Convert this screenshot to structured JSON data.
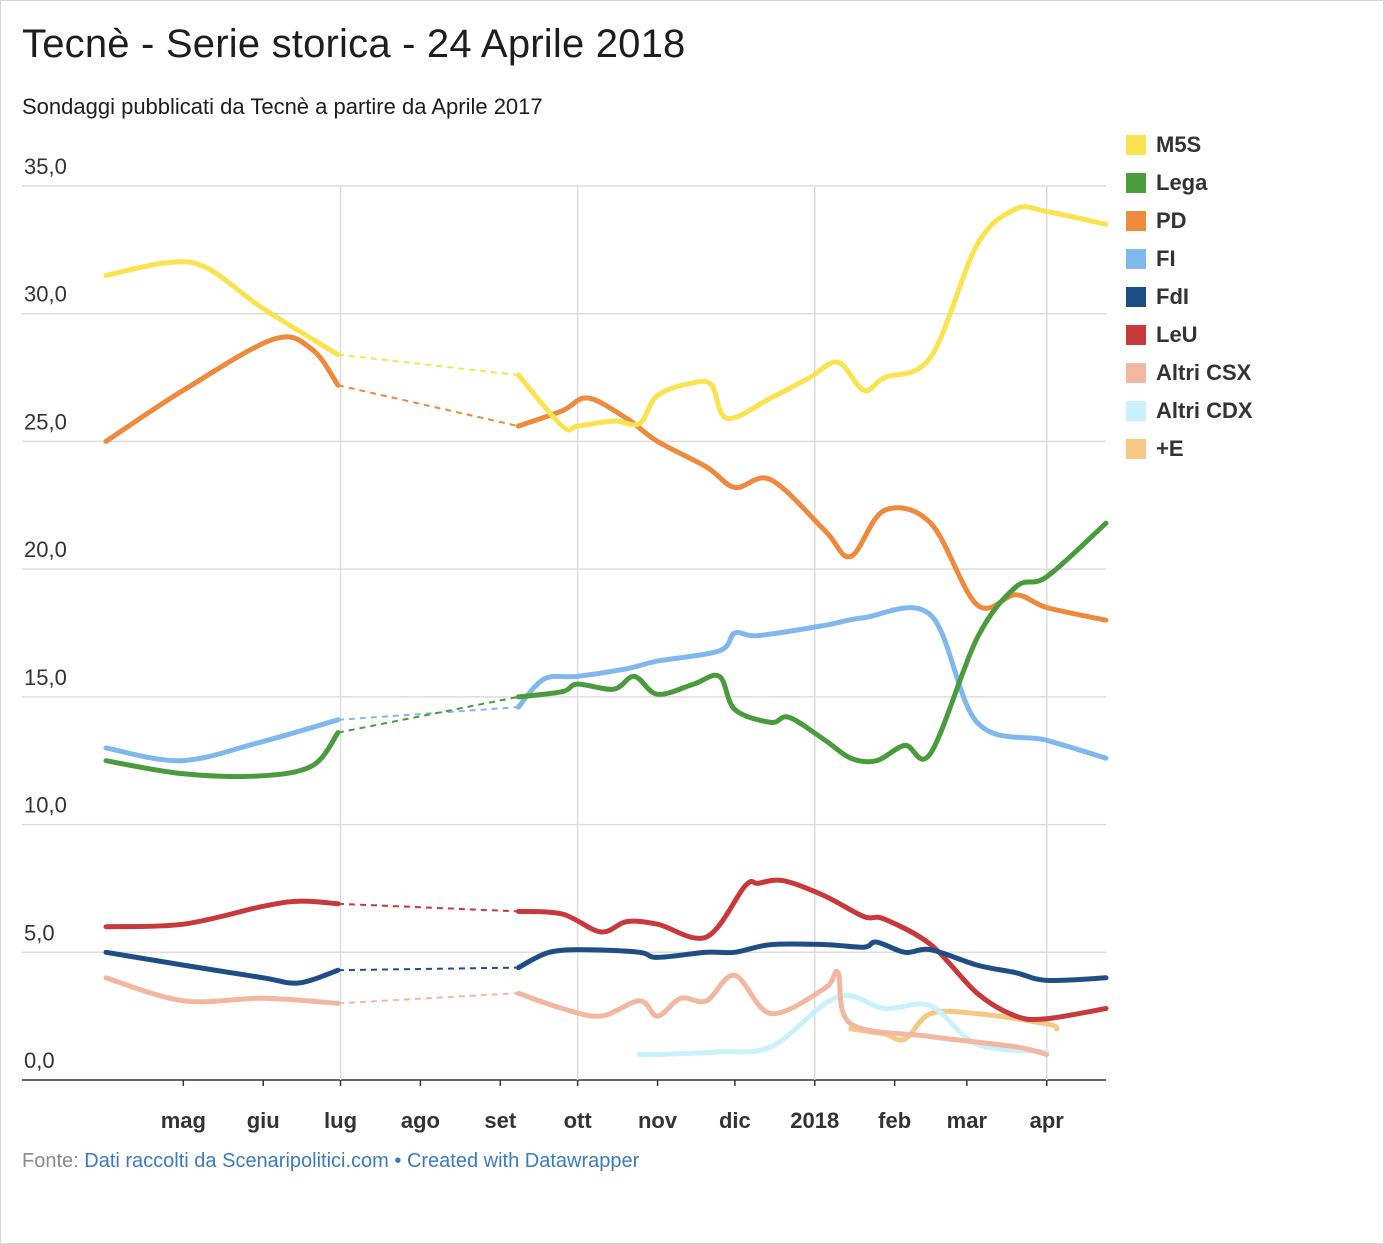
{
  "title": "Tecnè - Serie storica - 24 Aprile 2018",
  "subtitle": "Sondaggi pubblicati da Tecnè a partire da Aprile 2017",
  "footer": {
    "prefix": "Fonte: ",
    "source": "Dati raccolti da Scenaripolitici.com",
    "separator": " • ",
    "credit": "Created with Datawrapper"
  },
  "chart_data": {
    "type": "line",
    "title": "Tecnè - Serie storica - 24 Aprile 2018",
    "subtitle": "Sondaggi pubblicati da Tecnè a partire da Aprile 2017",
    "xlabel": "",
    "ylabel": "",
    "xlim": [
      "2017-04-01",
      "2018-04-24"
    ],
    "ylim": [
      0,
      35
    ],
    "y_ticks": [
      0,
      5,
      10,
      15,
      20,
      25,
      30,
      35
    ],
    "y_tick_labels": [
      "0,0",
      "5,0",
      "10,0",
      "15,0",
      "20,0",
      "25,0",
      "30,0",
      "35,0"
    ],
    "x_ticks": [
      "2017-05-01",
      "2017-06-01",
      "2017-07-01",
      "2017-08-01",
      "2017-09-01",
      "2017-10-01",
      "2017-11-01",
      "2017-12-01",
      "2018-01-01",
      "2018-02-01",
      "2018-03-01",
      "2018-04-01"
    ],
    "x_tick_labels": [
      "mag",
      "giu",
      "lug",
      "ago",
      "set",
      "ott",
      "nov",
      "dic",
      "2018",
      "feb",
      "mar",
      "apr"
    ],
    "grid": "x and y",
    "legend_position": "right",
    "note": "dashed segments join polls separated by gaps",
    "series": [
      {
        "name": "M5S",
        "color": "#fae34f",
        "points": [
          [
            "2017-04-01",
            31.5
          ],
          [
            "2017-04-25",
            32.0
          ],
          [
            "2017-05-10",
            31.8
          ],
          [
            "2017-06-01",
            30.2
          ],
          [
            "2017-06-30",
            28.4
          ],
          [
            "2017-09-08",
            27.6
          ],
          [
            "2017-09-25",
            25.6
          ],
          [
            "2017-10-01",
            25.6
          ],
          [
            "2017-10-15",
            25.8
          ],
          [
            "2017-10-25",
            25.7
          ],
          [
            "2017-11-01",
            26.8
          ],
          [
            "2017-11-15",
            27.3
          ],
          [
            "2017-11-22",
            27.2
          ],
          [
            "2017-11-28",
            25.9
          ],
          [
            "2017-12-15",
            26.7
          ],
          [
            "2017-12-30",
            27.5
          ],
          [
            "2018-01-10",
            28.1
          ],
          [
            "2018-01-20",
            27.0
          ],
          [
            "2018-01-28",
            27.5
          ],
          [
            "2018-02-15",
            28.3
          ],
          [
            "2018-03-05",
            32.7
          ],
          [
            "2018-03-20",
            34.1
          ],
          [
            "2018-04-01",
            34.0
          ],
          [
            "2018-04-24",
            33.5
          ]
        ]
      },
      {
        "name": "Lega",
        "color": "#4a9b3d",
        "points": [
          [
            "2017-04-01",
            12.5
          ],
          [
            "2017-04-30",
            12.0
          ],
          [
            "2017-05-30",
            11.9
          ],
          [
            "2017-06-20",
            12.3
          ],
          [
            "2017-06-30",
            13.6
          ],
          [
            "2017-09-08",
            15.0
          ],
          [
            "2017-09-25",
            15.2
          ],
          [
            "2017-10-01",
            15.5
          ],
          [
            "2017-10-15",
            15.3
          ],
          [
            "2017-10-23",
            15.8
          ],
          [
            "2017-11-01",
            15.1
          ],
          [
            "2017-11-15",
            15.5
          ],
          [
            "2017-11-25",
            15.8
          ],
          [
            "2017-12-01",
            14.5
          ],
          [
            "2017-12-15",
            14.0
          ],
          [
            "2017-12-22",
            14.2
          ],
          [
            "2018-01-05",
            13.3
          ],
          [
            "2018-01-15",
            12.6
          ],
          [
            "2018-01-25",
            12.5
          ],
          [
            "2018-02-05",
            13.1
          ],
          [
            "2018-02-15",
            12.8
          ],
          [
            "2018-03-05",
            17.3
          ],
          [
            "2018-03-20",
            19.3
          ],
          [
            "2018-04-01",
            19.7
          ],
          [
            "2018-04-24",
            21.8
          ]
        ]
      },
      {
        "name": "PD",
        "color": "#ee8a3d",
        "points": [
          [
            "2017-04-01",
            25.0
          ],
          [
            "2017-05-01",
            27.0
          ],
          [
            "2017-06-05",
            29.0
          ],
          [
            "2017-06-20",
            28.6
          ],
          [
            "2017-06-30",
            27.2
          ],
          [
            "2017-09-08",
            25.6
          ],
          [
            "2017-09-25",
            26.2
          ],
          [
            "2017-10-05",
            26.7
          ],
          [
            "2017-10-20",
            25.9
          ],
          [
            "2017-11-01",
            25.0
          ],
          [
            "2017-11-20",
            24.0
          ],
          [
            "2017-12-01",
            23.2
          ],
          [
            "2017-12-15",
            23.5
          ],
          [
            "2018-01-05",
            21.5
          ],
          [
            "2018-01-15",
            20.5
          ],
          [
            "2018-01-28",
            22.3
          ],
          [
            "2018-02-15",
            21.8
          ],
          [
            "2018-03-05",
            18.6
          ],
          [
            "2018-03-20",
            19.0
          ],
          [
            "2018-04-01",
            18.5
          ],
          [
            "2018-04-24",
            18.0
          ]
        ]
      },
      {
        "name": "FI",
        "color": "#80b8ee",
        "points": [
          [
            "2017-04-01",
            13.0
          ],
          [
            "2017-04-30",
            12.5
          ],
          [
            "2017-05-30",
            13.2
          ],
          [
            "2017-06-30",
            14.1
          ],
          [
            "2017-09-08",
            14.6
          ],
          [
            "2017-09-18",
            15.7
          ],
          [
            "2017-10-01",
            15.8
          ],
          [
            "2017-10-20",
            16.1
          ],
          [
            "2017-11-01",
            16.4
          ],
          [
            "2017-11-25",
            16.8
          ],
          [
            "2017-12-01",
            17.5
          ],
          [
            "2017-12-10",
            17.4
          ],
          [
            "2018-01-05",
            17.8
          ],
          [
            "2018-01-20",
            18.1
          ],
          [
            "2018-02-15",
            18.2
          ],
          [
            "2018-03-05",
            14.0
          ],
          [
            "2018-04-01",
            13.3
          ],
          [
            "2018-04-24",
            12.6
          ]
        ]
      },
      {
        "name": "FdI",
        "color": "#1f4e85",
        "points": [
          [
            "2017-04-01",
            5.0
          ],
          [
            "2017-05-01",
            4.5
          ],
          [
            "2017-06-01",
            4.0
          ],
          [
            "2017-06-15",
            3.8
          ],
          [
            "2017-06-30",
            4.3
          ],
          [
            "2017-09-08",
            4.4
          ],
          [
            "2017-09-20",
            5.0
          ],
          [
            "2017-10-05",
            5.1
          ],
          [
            "2017-10-25",
            5.0
          ],
          [
            "2017-11-01",
            4.8
          ],
          [
            "2017-11-20",
            5.0
          ],
          [
            "2017-12-01",
            5.0
          ],
          [
            "2017-12-15",
            5.3
          ],
          [
            "2018-01-05",
            5.3
          ],
          [
            "2018-01-20",
            5.2
          ],
          [
            "2018-01-25",
            5.4
          ],
          [
            "2018-02-05",
            5.0
          ],
          [
            "2018-02-15",
            5.1
          ],
          [
            "2018-03-05",
            4.5
          ],
          [
            "2018-03-20",
            4.2
          ],
          [
            "2018-04-01",
            3.9
          ],
          [
            "2018-04-24",
            4.0
          ]
        ]
      },
      {
        "name": "LeU",
        "color": "#c8393b",
        "points": [
          [
            "2017-04-01",
            6.0
          ],
          [
            "2017-05-01",
            6.1
          ],
          [
            "2017-06-01",
            6.8
          ],
          [
            "2017-06-15",
            7.0
          ],
          [
            "2017-06-30",
            6.9
          ],
          [
            "2017-09-08",
            6.6
          ],
          [
            "2017-09-25",
            6.5
          ],
          [
            "2017-10-10",
            5.8
          ],
          [
            "2017-10-20",
            6.2
          ],
          [
            "2017-11-01",
            6.1
          ],
          [
            "2017-11-20",
            5.6
          ],
          [
            "2017-12-05",
            7.6
          ],
          [
            "2017-12-10",
            7.7
          ],
          [
            "2017-12-20",
            7.8
          ],
          [
            "2018-01-05",
            7.2
          ],
          [
            "2018-01-20",
            6.4
          ],
          [
            "2018-01-28",
            6.3
          ],
          [
            "2018-02-15",
            5.3
          ],
          [
            "2018-03-05",
            3.4
          ],
          [
            "2018-03-20",
            2.5
          ],
          [
            "2018-04-01",
            2.4
          ],
          [
            "2018-04-24",
            2.8
          ]
        ]
      },
      {
        "name": "Altri CSX",
        "color": "#f1b7a0",
        "points": [
          [
            "2017-04-01",
            4.0
          ],
          [
            "2017-05-01",
            3.1
          ],
          [
            "2017-06-01",
            3.2
          ],
          [
            "2017-06-30",
            3.0
          ],
          [
            "2017-09-08",
            3.4
          ],
          [
            "2017-09-25",
            2.8
          ],
          [
            "2017-10-10",
            2.5
          ],
          [
            "2017-10-25",
            3.1
          ],
          [
            "2017-11-01",
            2.5
          ],
          [
            "2017-11-10",
            3.2
          ],
          [
            "2017-11-20",
            3.1
          ],
          [
            "2017-12-01",
            4.1
          ],
          [
            "2017-12-15",
            2.6
          ],
          [
            "2018-01-05",
            3.6
          ],
          [
            "2018-01-10",
            4.2
          ],
          [
            "2018-01-15",
            2.2
          ],
          [
            "2018-02-15",
            1.7
          ],
          [
            "2018-03-20",
            1.3
          ],
          [
            "2018-04-01",
            1.0
          ]
        ]
      },
      {
        "name": "Altri CDX",
        "color": "#c9f1fb",
        "points": [
          [
            "2017-10-25",
            1.0
          ],
          [
            "2017-11-01",
            1.0
          ],
          [
            "2017-11-25",
            1.1
          ],
          [
            "2017-12-15",
            1.3
          ],
          [
            "2018-01-05",
            3.0
          ],
          [
            "2018-01-15",
            3.3
          ],
          [
            "2018-01-28",
            2.8
          ],
          [
            "2018-02-15",
            2.9
          ],
          [
            "2018-03-05",
            1.4
          ],
          [
            "2018-04-01",
            1.1
          ]
        ]
      },
      {
        "name": "+E",
        "color": "#f6c883",
        "points": [
          [
            "2018-01-15",
            2.0
          ],
          [
            "2018-01-28",
            1.8
          ],
          [
            "2018-02-05",
            1.6
          ],
          [
            "2018-02-15",
            2.6
          ],
          [
            "2018-03-05",
            2.6
          ],
          [
            "2018-04-01",
            2.2
          ],
          [
            "2018-04-05",
            2.0
          ]
        ]
      }
    ]
  }
}
